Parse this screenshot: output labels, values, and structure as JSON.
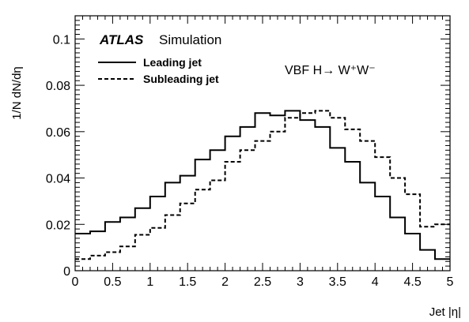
{
  "chart_data": {
    "type": "line",
    "title": "",
    "xlabel": "Jet |η|",
    "ylabel": "1/N dN/dη",
    "xlim": [
      0,
      5
    ],
    "ylim": [
      0,
      0.11
    ],
    "x_ticks": [
      "0",
      "0.5",
      "1",
      "1.5",
      "2",
      "2.5",
      "3",
      "3.5",
      "4",
      "4.5",
      "5"
    ],
    "y_ticks": [
      "0",
      "0.02",
      "0.04",
      "0.06",
      "0.08",
      "0.1"
    ],
    "grid": false,
    "legend_position": "top-left",
    "bin_width": 0.2,
    "annotations": {
      "experiment": "ATLAS",
      "tag": "Simulation",
      "process": "VBF H→ W⁺W⁻"
    },
    "series": [
      {
        "name": "Leading jet",
        "line_style": "solid",
        "values": [
          0.016,
          0.017,
          0.021,
          0.023,
          0.027,
          0.032,
          0.038,
          0.041,
          0.048,
          0.052,
          0.058,
          0.062,
          0.068,
          0.067,
          0.069,
          0.065,
          0.062,
          0.053,
          0.047,
          0.038,
          0.032,
          0.023,
          0.016,
          0.009,
          0.005
        ]
      },
      {
        "name": "Subleading jet",
        "line_style": "dashed",
        "values": [
          0.005,
          0.0065,
          0.008,
          0.0105,
          0.0155,
          0.0185,
          0.024,
          0.029,
          0.035,
          0.039,
          0.047,
          0.052,
          0.056,
          0.06,
          0.066,
          0.068,
          0.069,
          0.066,
          0.061,
          0.056,
          0.049,
          0.04,
          0.033,
          0.019,
          0.02
        ]
      }
    ]
  }
}
